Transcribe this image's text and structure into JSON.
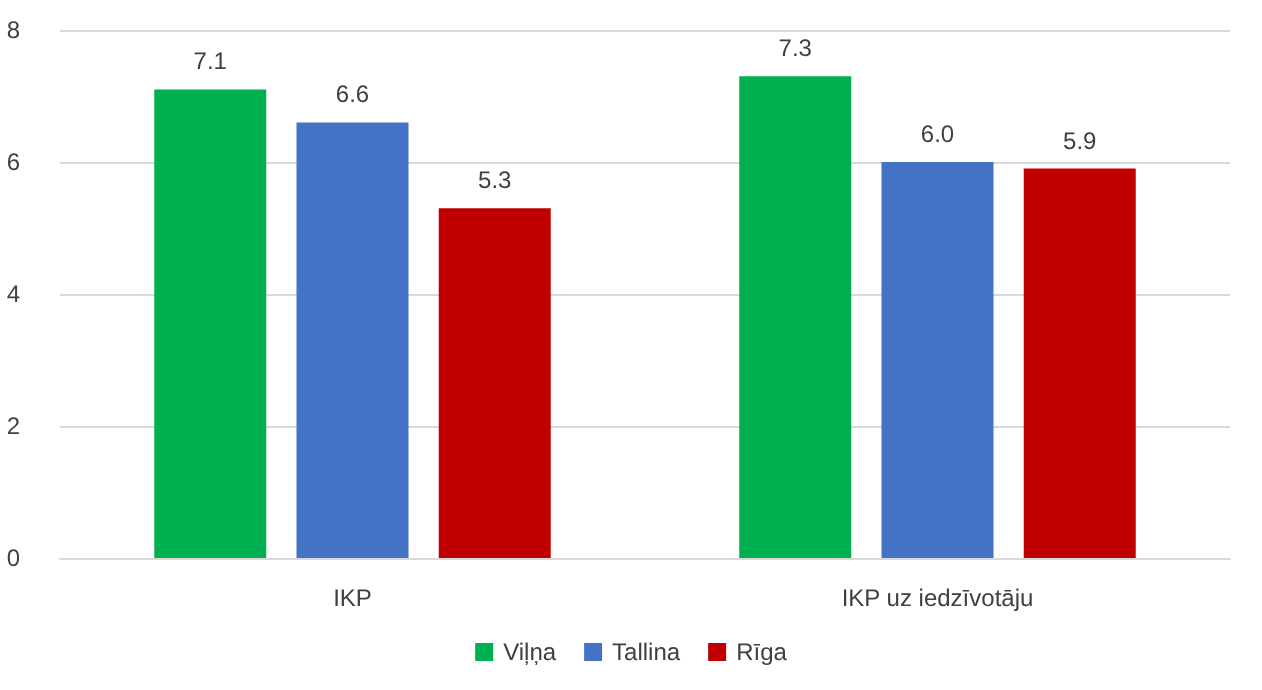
{
  "chart_data": {
    "type": "bar",
    "categories": [
      "IKP",
      "IKP uz iedzīvotāju"
    ],
    "series": [
      {
        "name": "Viļņa",
        "color": "#00b050",
        "values": [
          7.1,
          7.3
        ],
        "value_labels": [
          "7.1",
          "7.3"
        ]
      },
      {
        "name": "Tallina",
        "color": "#4472c4",
        "values": [
          6.6,
          6.0
        ],
        "value_labels": [
          "6.6",
          "6.0"
        ]
      },
      {
        "name": "Rīga",
        "color": "#c00000",
        "values": [
          5.3,
          5.9
        ],
        "value_labels": [
          "5.3",
          "5.9"
        ]
      }
    ],
    "ylim": [
      0,
      8
    ],
    "yticks": [
      0,
      2,
      4,
      6,
      8
    ],
    "grid": "y",
    "legend": "bottom"
  }
}
